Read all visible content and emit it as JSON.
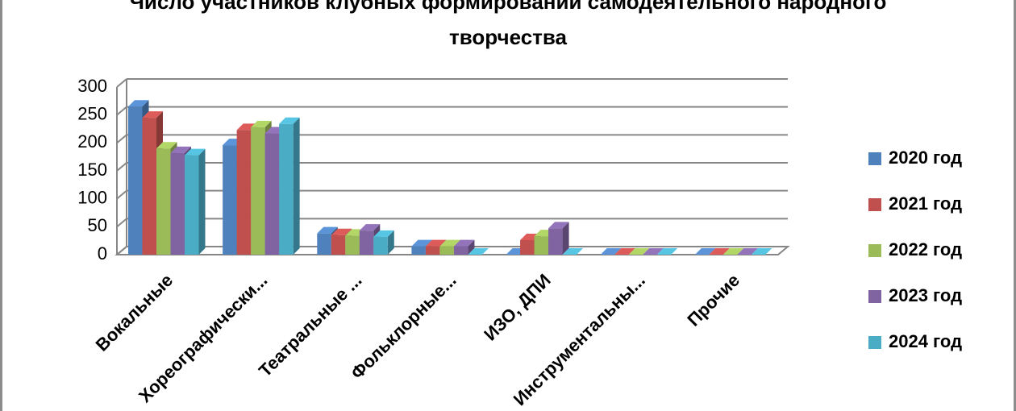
{
  "chart_data": {
    "type": "bar3d",
    "title": "Число участников клубных формирований самодеятельного народного творчества",
    "categories": [
      "Вокальные",
      "Хореографически...",
      "Театральные ...",
      "Фольклорные...",
      "ИЗО, ДПИ",
      "Инструментальны...",
      "Прочие"
    ],
    "series": [
      {
        "name": "2020 год",
        "color": "#4f81bd",
        "values": [
          265,
          196,
          38,
          15,
          0,
          0,
          0
        ]
      },
      {
        "name": "2021 год",
        "color": "#c0504d",
        "values": [
          245,
          223,
          35,
          15,
          26,
          0,
          0
        ]
      },
      {
        "name": "2022 год",
        "color": "#9bbb59",
        "values": [
          190,
          228,
          34,
          15,
          33,
          0,
          0
        ]
      },
      {
        "name": "2023 год",
        "color": "#8064a2",
        "values": [
          182,
          217,
          43,
          15,
          47,
          0,
          0
        ]
      },
      {
        "name": "2024 год",
        "color": "#4bacc6",
        "values": [
          178,
          234,
          32,
          0,
          0,
          0,
          0
        ]
      }
    ],
    "ylim": [
      0,
      300
    ],
    "yticks": [
      0,
      50,
      100,
      150,
      200,
      250,
      300
    ],
    "grid": true,
    "legend": "right"
  }
}
